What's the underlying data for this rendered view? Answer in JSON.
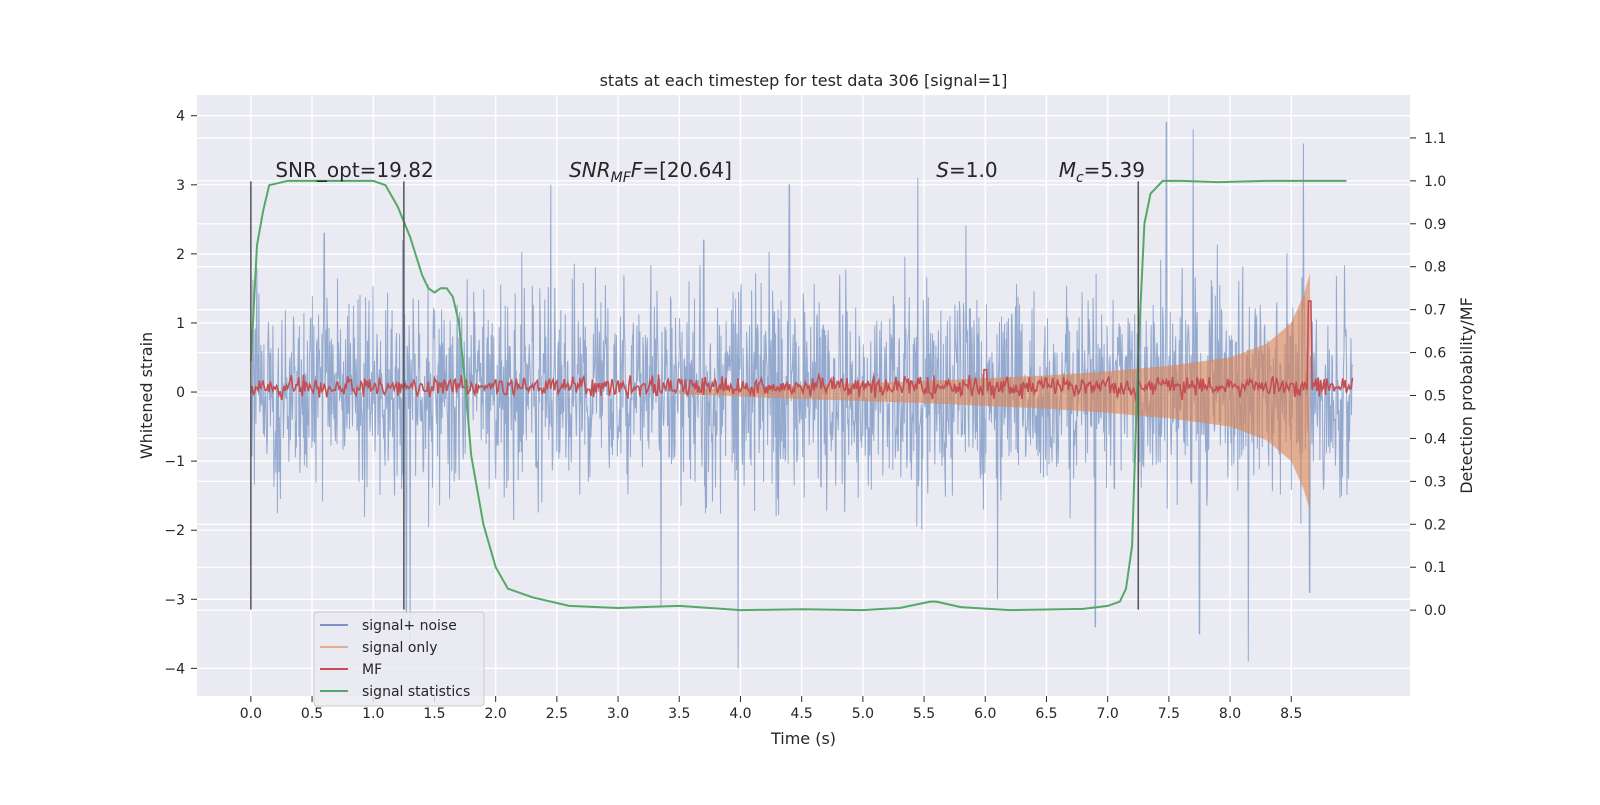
{
  "chart_data": {
    "type": "line",
    "title": "stats at each timestep for test data 306 [signal=1]",
    "xlabel": "Time (s)",
    "ylabel": "Whitened strain",
    "ylabel_right": "Detection probability/MF",
    "xlim": [
      -0.44,
      9.47
    ],
    "ylim": [
      -4.4,
      4.3
    ],
    "ylim_right": [
      -0.2,
      1.2
    ],
    "x_ticks": [
      "0.0",
      "0.5",
      "1.0",
      "1.5",
      "2.0",
      "2.5",
      "3.0",
      "3.5",
      "4.0",
      "4.5",
      "5.0",
      "5.5",
      "6.0",
      "6.5",
      "7.0",
      "7.5",
      "8.0",
      "8.5"
    ],
    "y_ticks": [
      "4",
      "3",
      "2",
      "1",
      "0",
      "−1",
      "−2",
      "−3",
      "−4"
    ],
    "y_tick_values": [
      4,
      3,
      2,
      1,
      0,
      -1,
      -2,
      -3,
      -4
    ],
    "y_right_ticks": [
      "1.1",
      "1.0",
      "0.9",
      "0.8",
      "0.7",
      "0.6",
      "0.5",
      "0.4",
      "0.3",
      "0.2",
      "0.1",
      "0.0"
    ],
    "y_right_tick_values": [
      1.1,
      1.0,
      0.9,
      0.8,
      0.7,
      0.6,
      0.5,
      0.4,
      0.3,
      0.2,
      0.1,
      0.0
    ],
    "grid": true,
    "legend_position": "lower-left",
    "annotations": {
      "snr_opt": "SNR_opt=19.82",
      "snr_mf_main": "SNR",
      "snr_mf_sub": "MF",
      "snr_mf_rest": "=[20.64]",
      "s_main": "S",
      "s_rest": "=1.0",
      "mc_main": "M",
      "mc_sub": "c",
      "mc_rest": "=5.39"
    },
    "annotation_x": [
      0.2,
      2.6,
      5.6,
      6.6
    ],
    "annotation_y": 3.2,
    "vlines": [
      0.0,
      1.25,
      7.25
    ],
    "vline_range": [
      -3.15,
      3.05
    ],
    "series": [
      {
        "name": "signal+ noise",
        "color": "#4c72b0",
        "axis": "left",
        "x_range": [
          0.0,
          9.0
        ],
        "typical_abs": 1.2,
        "peaks": [
          [
            0.05,
            1.8
          ],
          [
            0.6,
            2.3
          ],
          [
            1.24,
            2.2
          ],
          [
            1.27,
            -3.2
          ],
          [
            1.3,
            -3.6
          ],
          [
            2.45,
            3.0
          ],
          [
            3.35,
            -3.1
          ],
          [
            3.7,
            2.2
          ],
          [
            3.98,
            -4.0
          ],
          [
            4.4,
            3.0
          ],
          [
            5.45,
            3.1
          ],
          [
            6.1,
            -3.0
          ],
          [
            6.9,
            -3.4
          ],
          [
            7.48,
            3.9
          ],
          [
            7.7,
            3.8
          ],
          [
            7.75,
            -3.5
          ],
          [
            8.15,
            -3.9
          ],
          [
            8.6,
            3.6
          ],
          [
            8.65,
            -2.9
          ]
        ]
      },
      {
        "name": "signal only",
        "color": "#dd8452",
        "axis": "left",
        "x_range": [
          3.5,
          8.65
        ],
        "envelope": [
          [
            3.5,
            0.03
          ],
          [
            4.5,
            0.1
          ],
          [
            5.5,
            0.16
          ],
          [
            6.5,
            0.24
          ],
          [
            7.0,
            0.3
          ],
          [
            7.5,
            0.38
          ],
          [
            8.0,
            0.5
          ],
          [
            8.3,
            0.7
          ],
          [
            8.5,
            1.0
          ],
          [
            8.6,
            1.4
          ],
          [
            8.65,
            1.7
          ]
        ]
      },
      {
        "name": "MF",
        "color": "#c44e52",
        "axis": "right",
        "baseline": 0.52,
        "noise": 0.012,
        "x_range": [
          0.0,
          9.0
        ],
        "spikes": [
          [
            6.0,
            0.56
          ],
          [
            8.65,
            0.72
          ]
        ]
      },
      {
        "name": "signal statistics",
        "color": "#55a868",
        "axis": "right",
        "x": [
          0.0,
          0.05,
          0.1,
          0.15,
          0.3,
          0.5,
          0.8,
          1.0,
          1.1,
          1.2,
          1.3,
          1.4,
          1.45,
          1.5,
          1.55,
          1.6,
          1.65,
          1.7,
          1.75,
          1.8,
          1.9,
          2.0,
          2.1,
          2.3,
          2.6,
          3.0,
          3.5,
          4.0,
          4.5,
          5.0,
          5.3,
          5.55,
          5.6,
          5.8,
          6.2,
          6.8,
          7.0,
          7.1,
          7.15,
          7.2,
          7.25,
          7.3,
          7.35,
          7.45,
          7.6,
          7.9,
          8.3,
          8.8,
          8.95
        ],
        "y": [
          0.58,
          0.85,
          0.93,
          0.99,
          1.0,
          1.0,
          1.0,
          1.0,
          0.99,
          0.94,
          0.87,
          0.78,
          0.75,
          0.74,
          0.75,
          0.75,
          0.73,
          0.67,
          0.53,
          0.36,
          0.2,
          0.1,
          0.05,
          0.03,
          0.01,
          0.005,
          0.01,
          0.0,
          0.002,
          0.0,
          0.005,
          0.02,
          0.02,
          0.007,
          0.0,
          0.003,
          0.01,
          0.02,
          0.05,
          0.15,
          0.6,
          0.9,
          0.97,
          1.0,
          1.0,
          0.997,
          1.0,
          1.0,
          1.0
        ]
      }
    ]
  }
}
